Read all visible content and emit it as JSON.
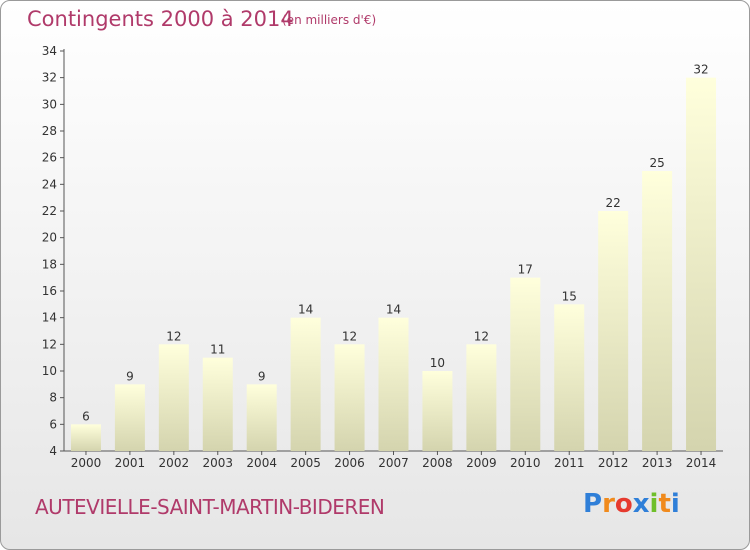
{
  "header": {
    "title": "Contingents 2000 à 2014",
    "subtitle": "(en milliers d'€)"
  },
  "footer": {
    "commune": "AUTEVIELLE-SAINT-MARTIN-BIDEREN",
    "logo_letters": [
      "P",
      "r",
      "o",
      "x",
      "i",
      "t",
      "i"
    ],
    "logo_colors": [
      "#2f7fd8",
      "#f08a1c",
      "#e63a2e",
      "#2f7fd8",
      "#6fbf2a",
      "#f08a1c",
      "#2f7fd8"
    ]
  },
  "colors": {
    "title": "#b03a6a",
    "bar_top": "#ffffdc",
    "bar_bottom": "#d4d4ae",
    "axis": "#555555"
  },
  "chart_data": {
    "type": "bar",
    "title": "Contingents 2000 à 2014",
    "subtitle": "(en milliers d'€)",
    "categories": [
      "2000",
      "2001",
      "2002",
      "2003",
      "2004",
      "2005",
      "2006",
      "2007",
      "2008",
      "2009",
      "2010",
      "2011",
      "2012",
      "2013",
      "2014"
    ],
    "values": [
      6,
      9,
      12,
      11,
      9,
      14,
      12,
      14,
      10,
      12,
      17,
      15,
      22,
      25,
      32
    ],
    "ylim": [
      4,
      34
    ],
    "yticks": [
      4,
      6,
      8,
      10,
      12,
      14,
      16,
      18,
      20,
      22,
      24,
      26,
      28,
      30,
      32,
      34
    ],
    "grid": false,
    "legend": "none"
  }
}
